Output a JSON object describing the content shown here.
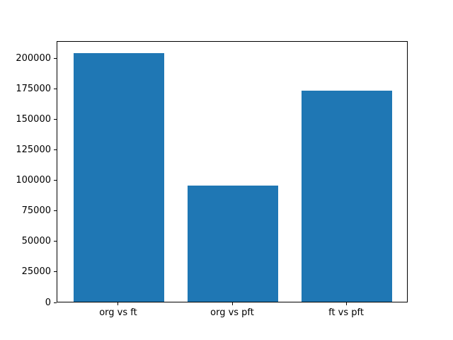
{
  "figure": {
    "background": "#ffffff",
    "title": ""
  },
  "chart_data": {
    "type": "bar",
    "title": "",
    "xlabel": "",
    "ylabel": "",
    "categories": [
      "org vs ft",
      "org vs pft",
      "ft vs pft"
    ],
    "values": [
      204000,
      95000,
      173000
    ],
    "bar_color": "#1f77b4",
    "bar_width_fraction": 0.8,
    "ylim": [
      0,
      214200
    ],
    "yticks": [
      0,
      25000,
      50000,
      75000,
      100000,
      125000,
      150000,
      175000,
      200000
    ],
    "grid": false,
    "legend": false,
    "tick_color": "#000000",
    "spine_color": "#000000"
  }
}
